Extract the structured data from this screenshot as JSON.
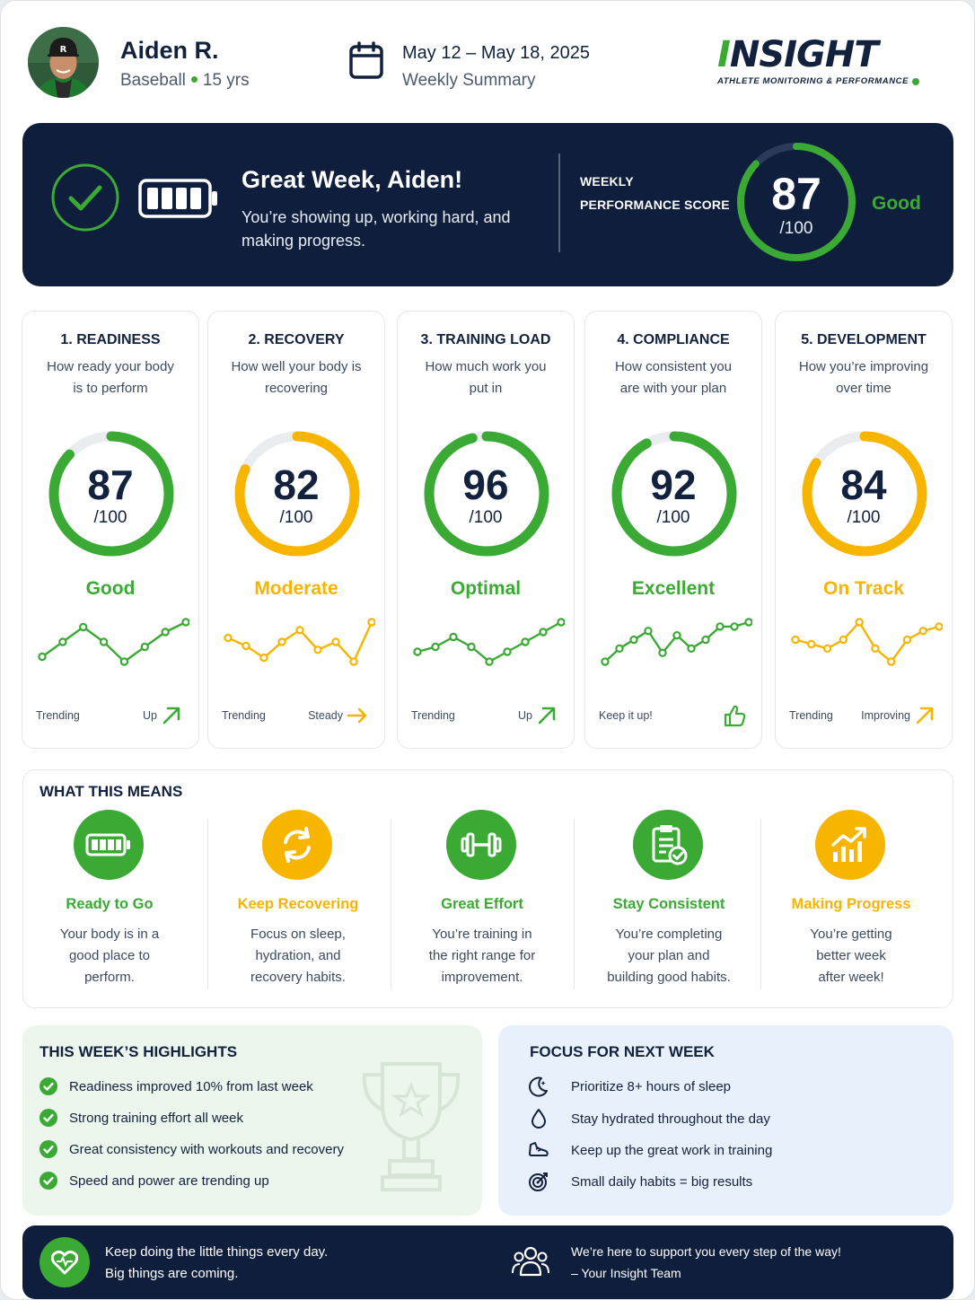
{
  "colors": {
    "navy": "#0f1e3d",
    "green": "#3aaa35",
    "amber": "#f7b500",
    "track": "#eaedf0"
  },
  "athlete": {
    "name": "Aiden R.",
    "sport": "Baseball",
    "age": "15 yrs"
  },
  "week": {
    "dates": "May 12 – May 18, 2025",
    "label": "Weekly Summary"
  },
  "brand": {
    "name": "INSIGHT",
    "tagline": "ATHLETE MONITORING & PERFORMANCE"
  },
  "banner": {
    "title": "Great Week, Aiden!",
    "text": "You’re showing up, working hard, and making progress.",
    "score_label": "WEEKLY PERFORMANCE SCORE",
    "score": "87",
    "score_value": 87,
    "out_of": "/100",
    "rating": "Good"
  },
  "metrics": [
    {
      "title": "1. READINESS",
      "desc": "How ready your body is to perform",
      "score": "87",
      "value": 87,
      "out_of": "/100",
      "status": "Good",
      "color": "#3aaa35",
      "trend_label": "Trending",
      "trend_dir": "Up",
      "arrow": "up-right-arrow-icon",
      "spark": [
        2,
        5,
        8,
        5,
        1,
        4,
        7,
        9
      ]
    },
    {
      "title": "2. RECOVERY",
      "desc": "How well your body is recovering",
      "score": "82",
      "value": 82,
      "out_of": "/100",
      "status": "Moderate",
      "color": "#f7b500",
      "trend_label": "Trending",
      "trend_dir": "Steady",
      "arrow": "right-arrow-icon",
      "spark": [
        8,
        6,
        3,
        7,
        10,
        5,
        7,
        2,
        12
      ]
    },
    {
      "title": "3. TRAINING LOAD",
      "desc": "How much work you put in",
      "score": "96",
      "value": 96,
      "out_of": "/100",
      "status": "Optimal",
      "color": "#3aaa35",
      "trend_label": "Trending",
      "trend_dir": "Up",
      "arrow": "up-right-arrow-icon",
      "spark": [
        4,
        5,
        7,
        5,
        2,
        4,
        6,
        8,
        10
      ]
    },
    {
      "title": "4. COMPLIANCE",
      "desc": "How consistent you are with your plan",
      "score": "92",
      "value": 92,
      "out_of": "/100",
      "status": "Excellent",
      "color": "#3aaa35",
      "trend_label": "Keep it up!",
      "trend_dir": "",
      "arrow": "thumbs-up-icon",
      "spark": [
        2,
        5,
        7,
        9,
        4,
        8,
        5,
        7,
        10,
        10,
        11
      ]
    },
    {
      "title": "5. DEVELOPMENT",
      "desc": "How you’re improving over time",
      "score": "84",
      "value": 84,
      "out_of": "/100",
      "status": "On Track",
      "color": "#f7b500",
      "trend_label": "Trending",
      "trend_dir": "Improving",
      "arrow": "up-right-arrow-icon",
      "spark": [
        9,
        8,
        7,
        9,
        13,
        7,
        4,
        9,
        11,
        12
      ]
    }
  ],
  "means": {
    "heading": "WHAT THIS MEANS",
    "items": [
      {
        "title": "Ready to Go",
        "text": "Your body is in a good place to perform.",
        "color": "#3aaa35",
        "icon": "battery-icon"
      },
      {
        "title": "Keep Recovering",
        "text": "Focus on sleep, hydration, and recovery habits.",
        "color": "#f7b500",
        "icon": "recycle-icon"
      },
      {
        "title": "Great Effort",
        "text": "You’re training in the right range for improvement.",
        "color": "#3aaa35",
        "icon": "dumbbell-icon"
      },
      {
        "title": "Stay Consistent",
        "text": "You’re completing your plan and building good habits.",
        "color": "#3aaa35",
        "icon": "clipboard-check-icon"
      },
      {
        "title": "Making Progress",
        "text": "You’re getting better week after week!",
        "color": "#f7b500",
        "icon": "growth-chart-icon"
      }
    ]
  },
  "highlights": {
    "heading": "THIS WEEK’S HIGHLIGHTS",
    "items": [
      "Readiness improved 10% from last week",
      "Strong training effort all week",
      "Great consistency with workouts and recovery",
      "Speed and power are trending up"
    ]
  },
  "focus": {
    "heading": "FOCUS FOR NEXT WEEK",
    "items": [
      {
        "text": "Prioritize 8+ hours of sleep",
        "icon": "moon-icon"
      },
      {
        "text": "Stay hydrated throughout the day",
        "icon": "water-drop-icon"
      },
      {
        "text": "Keep up the great work in training",
        "icon": "shoe-icon"
      },
      {
        "text": "Small daily habits = big results",
        "icon": "target-icon"
      }
    ]
  },
  "footer": {
    "line1": "Keep doing the little things every day.",
    "line2": "Big things are coming.",
    "right1": "We’re here to support you every step of the way!",
    "right2": "– Your Insight Team"
  }
}
